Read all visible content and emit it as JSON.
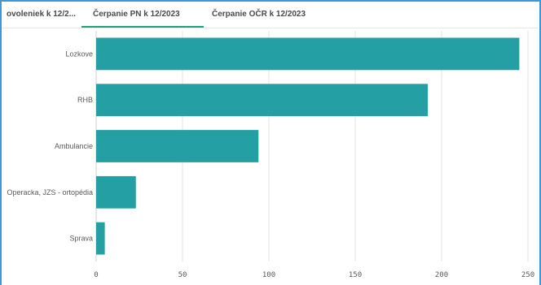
{
  "tabs": [
    {
      "label": "ovoleniek k 12/2...",
      "active": false
    },
    {
      "label": "Čerpanie PN k 12/2023",
      "active": true
    },
    {
      "label": "Čerpanie OČR k 12/2023",
      "active": false
    }
  ],
  "colors": {
    "bar": "#249fa3",
    "frame": "#3a9ad9",
    "active_tab_underline": "#1fa27a",
    "grid": "#e3e3e3"
  },
  "chart_data": {
    "type": "bar",
    "orientation": "horizontal",
    "categories": [
      "Lozkove",
      "RHB",
      "Ambulancie",
      "Operacka, JZS - ortopédia",
      "Sprava"
    ],
    "values": [
      245,
      192,
      94,
      23,
      5
    ],
    "xlim": [
      0,
      250
    ],
    "xticks": [
      0,
      50,
      100,
      150,
      200,
      250
    ],
    "title": "",
    "xlabel": "",
    "ylabel": "",
    "grid": true,
    "legend": false
  }
}
